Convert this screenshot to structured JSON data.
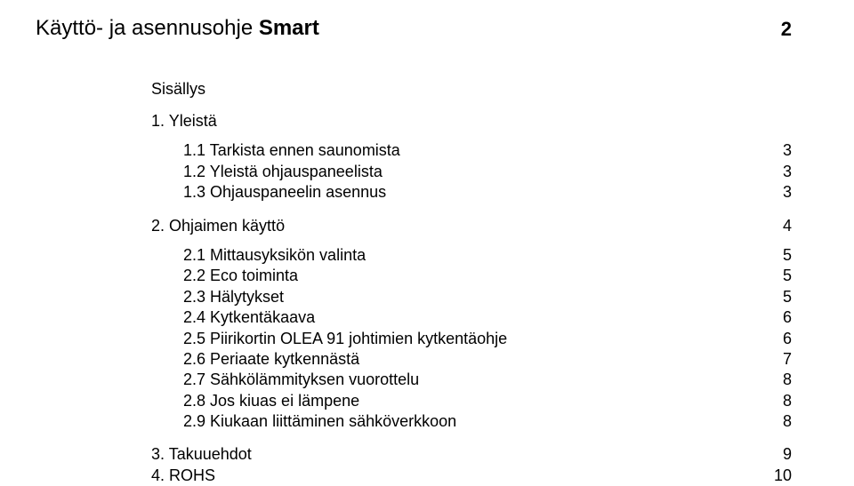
{
  "header": {
    "title_prefix": "Käyttö- ja asennusohje ",
    "title_bold": "Smart",
    "page_number": "2"
  },
  "toc": {
    "heading": "Sisällys",
    "items": [
      {
        "type": "section",
        "num": "1.",
        "label": "Yleistä",
        "page": ""
      },
      {
        "type": "sub",
        "num": "1.1",
        "label": "Tarkista ennen saunomista",
        "page": "3"
      },
      {
        "type": "sub",
        "num": "1.2",
        "label": "Yleistä ohjauspaneelista",
        "page": "3"
      },
      {
        "type": "sub",
        "num": "1.3",
        "label": "Ohjauspaneelin asennus",
        "page": "3"
      },
      {
        "type": "section",
        "num": "2.",
        "label": "Ohjaimen käyttö",
        "page": "4"
      },
      {
        "type": "sub",
        "num": "2.1",
        "label": "Mittausyksikön valinta",
        "page": "5"
      },
      {
        "type": "sub",
        "num": "2.2",
        "label": "Eco toiminta",
        "page": "5"
      },
      {
        "type": "sub",
        "num": "2.3",
        "label": "Hälytykset",
        "page": "5"
      },
      {
        "type": "sub",
        "num": "2.4",
        "label": "Kytkentäkaava",
        "page": "6"
      },
      {
        "type": "sub",
        "num": "2.5",
        "label": "Piirikortin OLEA 91 johtimien kytkentäohje",
        "page": "6"
      },
      {
        "type": "sub",
        "num": "2.6",
        "label": "Periaate kytkennästä",
        "page": "7"
      },
      {
        "type": "sub",
        "num": "2.7",
        "label": "Sähkölämmityksen vuorottelu",
        "page": "8"
      },
      {
        "type": "sub",
        "num": "2.8",
        "label": "Jos kiuas ei lämpene",
        "page": "8"
      },
      {
        "type": "sub",
        "num": "2.9",
        "label": "Kiukaan liittäminen sähköverkkoon",
        "page": "8"
      },
      {
        "type": "section",
        "num": "3.",
        "label": "Takuuehdot",
        "page": "9"
      },
      {
        "type": "section_tight",
        "num": "4.",
        "label": "ROHS",
        "page": "10"
      }
    ]
  }
}
